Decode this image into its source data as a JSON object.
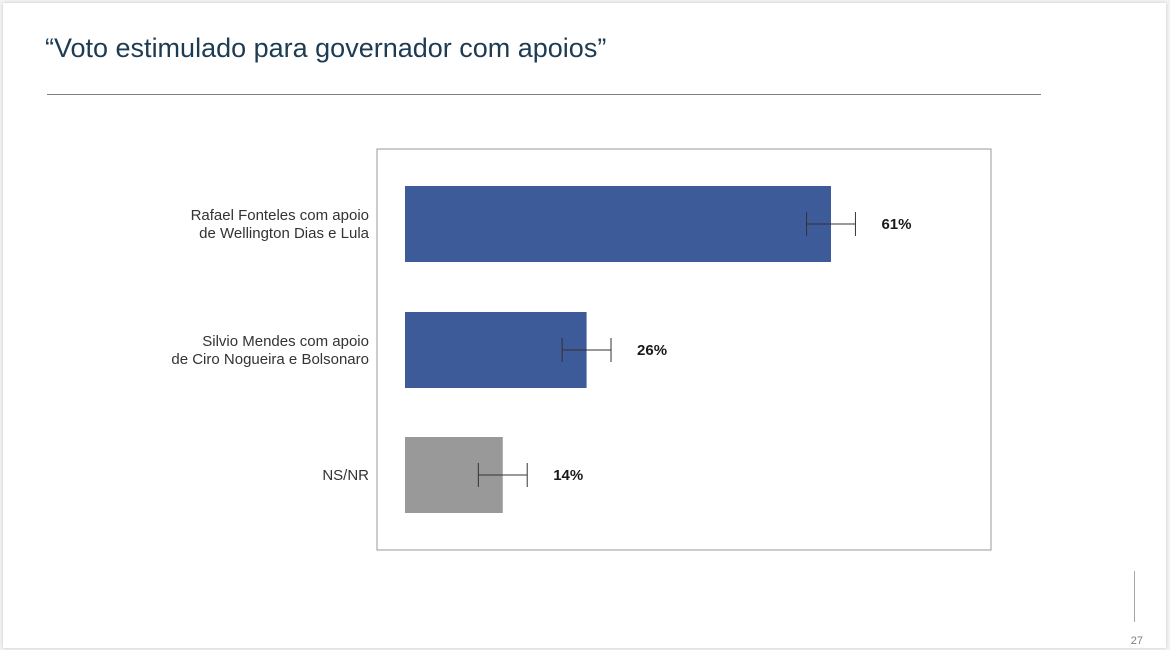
{
  "slide": {
    "title": "“Voto estimulado para governador com apoios”",
    "page_number": "27"
  },
  "chart_data": {
    "type": "bar",
    "orientation": "horizontal",
    "title": "",
    "xlabel": "",
    "ylabel": "",
    "xlim": [
      0,
      100
    ],
    "grid": false,
    "legend": "none",
    "categories": [
      [
        "Rafael Fonteles com apoio",
        "de Wellington Dias e Lula"
      ],
      [
        "Silvio Mendes com apoio",
        "de Ciro Nogueira e Bolsonaro"
      ],
      [
        "NS/NR"
      ]
    ],
    "values": [
      61,
      26,
      14
    ],
    "data_labels": [
      "61%",
      "26%",
      "14%"
    ],
    "error_margin": 3.5,
    "colors": [
      "#3d5a99",
      "#3d5a99",
      "#999999"
    ]
  }
}
